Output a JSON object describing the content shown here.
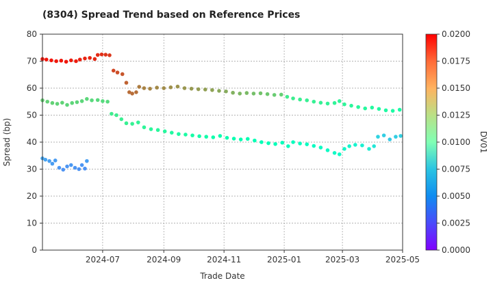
{
  "chart_data": {
    "type": "scatter",
    "title": "(8304)   Spread Trend based on Reference Prices",
    "xlabel": "Trade Date",
    "ylabel": "Spread (bp)",
    "ylim": [
      0,
      80
    ],
    "xlim": [
      "2024-05-01",
      "2025-05-01"
    ],
    "grid": true,
    "x_ticks": [
      "2024-07",
      "2024-09",
      "2024-11",
      "2025-01",
      "2025-03",
      "2025-05"
    ],
    "y_ticks": [
      0,
      10,
      20,
      30,
      40,
      50,
      60,
      70,
      80
    ],
    "colorbar": {
      "label": "DV01",
      "range": [
        0.0,
        0.02
      ],
      "ticks": [
        "0.0000",
        "0.0025",
        "0.0050",
        "0.0075",
        "0.0100",
        "0.0125",
        "0.0150",
        "0.0175",
        "0.0200"
      ],
      "colormap": "rainbow"
    },
    "series": [
      {
        "points": [
          {
            "x": "2024-05-01",
            "y": 70.8,
            "dv01": 0.0195
          },
          {
            "x": "2024-05-05",
            "y": 70.6,
            "dv01": 0.0195
          },
          {
            "x": "2024-05-10",
            "y": 70.3,
            "dv01": 0.0195
          },
          {
            "x": "2024-05-15",
            "y": 70.0,
            "dv01": 0.0194
          },
          {
            "x": "2024-05-20",
            "y": 70.2,
            "dv01": 0.0194
          },
          {
            "x": "2024-05-25",
            "y": 69.8,
            "dv01": 0.0194
          },
          {
            "x": "2024-05-30",
            "y": 70.3,
            "dv01": 0.0193
          },
          {
            "x": "2024-06-04",
            "y": 70.0,
            "dv01": 0.0193
          },
          {
            "x": "2024-06-08",
            "y": 70.6,
            "dv01": 0.0192
          },
          {
            "x": "2024-06-13",
            "y": 71.0,
            "dv01": 0.0191
          },
          {
            "x": "2024-06-18",
            "y": 71.2,
            "dv01": 0.0191
          },
          {
            "x": "2024-06-23",
            "y": 70.8,
            "dv01": 0.019
          },
          {
            "x": "2024-06-26",
            "y": 72.3,
            "dv01": 0.0189
          },
          {
            "x": "2024-06-30",
            "y": 72.5,
            "dv01": 0.0188
          },
          {
            "x": "2024-07-04",
            "y": 72.4,
            "dv01": 0.0187
          },
          {
            "x": "2024-07-08",
            "y": 72.2,
            "dv01": 0.0186
          },
          {
            "x": "2024-07-12",
            "y": 66.5,
            "dv01": 0.0182
          },
          {
            "x": "2024-07-16",
            "y": 65.8,
            "dv01": 0.018
          },
          {
            "x": "2024-07-21",
            "y": 65.2,
            "dv01": 0.0178
          },
          {
            "x": "2024-07-25",
            "y": 62.0,
            "dv01": 0.0175
          },
          {
            "x": "2024-07-28",
            "y": 58.5,
            "dv01": 0.0172
          },
          {
            "x": "2024-07-31",
            "y": 58.0,
            "dv01": 0.0172
          },
          {
            "x": "2024-08-04",
            "y": 58.5,
            "dv01": 0.0171
          },
          {
            "x": "2024-08-07",
            "y": 60.5,
            "dv01": 0.0168
          },
          {
            "x": "2024-08-12",
            "y": 60.0,
            "dv01": 0.0166
          },
          {
            "x": "2024-08-18",
            "y": 59.8,
            "dv01": 0.0165
          },
          {
            "x": "2024-08-25",
            "y": 60.2,
            "dv01": 0.0164
          },
          {
            "x": "2024-09-01",
            "y": 60.0,
            "dv01": 0.0163
          },
          {
            "x": "2024-09-08",
            "y": 60.3,
            "dv01": 0.0162
          },
          {
            "x": "2024-09-15",
            "y": 60.6,
            "dv01": 0.0161
          },
          {
            "x": "2024-09-22",
            "y": 60.0,
            "dv01": 0.016
          },
          {
            "x": "2024-09-29",
            "y": 59.8,
            "dv01": 0.0159
          },
          {
            "x": "2024-10-06",
            "y": 59.6,
            "dv01": 0.0158
          },
          {
            "x": "2024-10-13",
            "y": 59.5,
            "dv01": 0.0157
          },
          {
            "x": "2024-10-20",
            "y": 59.3,
            "dv01": 0.0156
          },
          {
            "x": "2024-10-27",
            "y": 59.0,
            "dv01": 0.0154
          },
          {
            "x": "2024-11-03",
            "y": 58.8,
            "dv01": 0.0153
          },
          {
            "x": "2024-11-10",
            "y": 58.3,
            "dv01": 0.0151
          },
          {
            "x": "2024-11-17",
            "y": 58.0,
            "dv01": 0.0149
          },
          {
            "x": "2024-11-24",
            "y": 58.2,
            "dv01": 0.0148
          },
          {
            "x": "2024-12-01",
            "y": 58.0,
            "dv01": 0.0146
          },
          {
            "x": "2024-12-08",
            "y": 58.1,
            "dv01": 0.0145
          },
          {
            "x": "2024-12-15",
            "y": 57.8,
            "dv01": 0.0143
          },
          {
            "x": "2024-12-22",
            "y": 57.5,
            "dv01": 0.0141
          },
          {
            "x": "2024-12-29",
            "y": 57.6,
            "dv01": 0.014
          }
        ]
      },
      {
        "points": [
          {
            "x": "2024-05-01",
            "y": 55.5,
            "dv01": 0.014
          },
          {
            "x": "2024-05-06",
            "y": 55.0,
            "dv01": 0.0139
          },
          {
            "x": "2024-05-11",
            "y": 54.5,
            "dv01": 0.0139
          },
          {
            "x": "2024-05-16",
            "y": 54.2,
            "dv01": 0.0138
          },
          {
            "x": "2024-05-21",
            "y": 54.6,
            "dv01": 0.0138
          },
          {
            "x": "2024-05-26",
            "y": 53.8,
            "dv01": 0.0137
          },
          {
            "x": "2024-05-31",
            "y": 54.5,
            "dv01": 0.0137
          },
          {
            "x": "2024-06-05",
            "y": 54.8,
            "dv01": 0.0137
          },
          {
            "x": "2024-06-10",
            "y": 55.2,
            "dv01": 0.0136
          },
          {
            "x": "2024-06-15",
            "y": 56.0,
            "dv01": 0.0136
          },
          {
            "x": "2024-06-20",
            "y": 55.5,
            "dv01": 0.0135
          },
          {
            "x": "2024-06-26",
            "y": 55.6,
            "dv01": 0.0135
          },
          {
            "x": "2024-07-01",
            "y": 55.2,
            "dv01": 0.0134
          },
          {
            "x": "2024-07-06",
            "y": 55.0,
            "dv01": 0.0134
          },
          {
            "x": "2025-01-04",
            "y": 56.8,
            "dv01": 0.0125
          },
          {
            "x": "2025-01-10",
            "y": 56.2,
            "dv01": 0.0124
          },
          {
            "x": "2025-01-17",
            "y": 55.8,
            "dv01": 0.0123
          },
          {
            "x": "2025-01-24",
            "y": 55.5,
            "dv01": 0.0122
          },
          {
            "x": "2025-01-31",
            "y": 55.0,
            "dv01": 0.0121
          },
          {
            "x": "2025-02-07",
            "y": 54.6,
            "dv01": 0.0121
          },
          {
            "x": "2025-02-14",
            "y": 54.3,
            "dv01": 0.012
          },
          {
            "x": "2025-02-21",
            "y": 54.5,
            "dv01": 0.0119
          },
          {
            "x": "2025-02-26",
            "y": 55.2,
            "dv01": 0.0119
          },
          {
            "x": "2025-03-03",
            "y": 54.0,
            "dv01": 0.0118
          },
          {
            "x": "2025-03-10",
            "y": 53.5,
            "dv01": 0.0117
          },
          {
            "x": "2025-03-17",
            "y": 53.0,
            "dv01": 0.0116
          },
          {
            "x": "2025-03-24",
            "y": 52.5,
            "dv01": 0.0115
          },
          {
            "x": "2025-03-31",
            "y": 52.8,
            "dv01": 0.0114
          },
          {
            "x": "2025-04-07",
            "y": 52.3,
            "dv01": 0.0113
          },
          {
            "x": "2025-04-14",
            "y": 51.8,
            "dv01": 0.0112
          },
          {
            "x": "2025-04-21",
            "y": 51.6,
            "dv01": 0.0111
          },
          {
            "x": "2025-04-28",
            "y": 52.0,
            "dv01": 0.011
          }
        ]
      },
      {
        "points": [
          {
            "x": "2024-07-10",
            "y": 50.5,
            "dv01": 0.0125
          },
          {
            "x": "2024-07-15",
            "y": 50.0,
            "dv01": 0.0124
          },
          {
            "x": "2024-07-20",
            "y": 48.5,
            "dv01": 0.0123
          },
          {
            "x": "2024-07-25",
            "y": 47.0,
            "dv01": 0.0122
          },
          {
            "x": "2024-07-31",
            "y": 46.8,
            "dv01": 0.0121
          },
          {
            "x": "2024-08-06",
            "y": 47.3,
            "dv01": 0.012
          },
          {
            "x": "2024-08-12",
            "y": 45.5,
            "dv01": 0.0118
          },
          {
            "x": "2024-08-19",
            "y": 44.8,
            "dv01": 0.0117
          },
          {
            "x": "2024-08-26",
            "y": 44.5,
            "dv01": 0.0116
          },
          {
            "x": "2024-09-02",
            "y": 44.0,
            "dv01": 0.0115
          },
          {
            "x": "2024-09-09",
            "y": 43.5,
            "dv01": 0.0113
          },
          {
            "x": "2024-09-16",
            "y": 43.0,
            "dv01": 0.0112
          },
          {
            "x": "2024-09-23",
            "y": 42.8,
            "dv01": 0.0111
          },
          {
            "x": "2024-09-30",
            "y": 42.5,
            "dv01": 0.0109
          },
          {
            "x": "2024-10-07",
            "y": 42.2,
            "dv01": 0.0108
          },
          {
            "x": "2024-10-14",
            "y": 42.0,
            "dv01": 0.0107
          },
          {
            "x": "2024-10-21",
            "y": 41.8,
            "dv01": 0.0106
          },
          {
            "x": "2024-10-28",
            "y": 42.3,
            "dv01": 0.0105
          },
          {
            "x": "2024-11-04",
            "y": 41.6,
            "dv01": 0.0104
          },
          {
            "x": "2024-11-11",
            "y": 41.3,
            "dv01": 0.0103
          },
          {
            "x": "2024-11-18",
            "y": 41.0,
            "dv01": 0.0102
          },
          {
            "x": "2024-11-25",
            "y": 41.2,
            "dv01": 0.0101
          },
          {
            "x": "2024-12-02",
            "y": 40.6,
            "dv01": 0.01
          },
          {
            "x": "2024-12-09",
            "y": 40.0,
            "dv01": 0.0099
          },
          {
            "x": "2024-12-16",
            "y": 39.6,
            "dv01": 0.0098
          },
          {
            "x": "2024-12-23",
            "y": 39.3,
            "dv01": 0.0097
          },
          {
            "x": "2024-12-30",
            "y": 39.8,
            "dv01": 0.0096
          },
          {
            "x": "2025-01-05",
            "y": 38.5,
            "dv01": 0.0094
          },
          {
            "x": "2025-01-10",
            "y": 40.0,
            "dv01": 0.0093
          },
          {
            "x": "2025-01-17",
            "y": 39.5,
            "dv01": 0.0092
          },
          {
            "x": "2025-01-24",
            "y": 39.2,
            "dv01": 0.0091
          },
          {
            "x": "2025-01-31",
            "y": 38.6,
            "dv01": 0.009
          },
          {
            "x": "2025-02-07",
            "y": 38.0,
            "dv01": 0.0089
          },
          {
            "x": "2025-02-14",
            "y": 37.0,
            "dv01": 0.0088
          },
          {
            "x": "2025-02-21",
            "y": 36.0,
            "dv01": 0.0087
          },
          {
            "x": "2025-02-26",
            "y": 35.5,
            "dv01": 0.0086
          },
          {
            "x": "2025-03-03",
            "y": 37.5,
            "dv01": 0.0084
          },
          {
            "x": "2025-03-08",
            "y": 38.5,
            "dv01": 0.0082
          },
          {
            "x": "2025-03-14",
            "y": 39.0,
            "dv01": 0.008
          },
          {
            "x": "2025-03-21",
            "y": 38.8,
            "dv01": 0.0078
          },
          {
            "x": "2025-03-28",
            "y": 37.5,
            "dv01": 0.0076
          },
          {
            "x": "2025-04-02",
            "y": 38.5,
            "dv01": 0.0072
          },
          {
            "x": "2025-04-06",
            "y": 42.0,
            "dv01": 0.0062
          },
          {
            "x": "2025-04-12",
            "y": 42.5,
            "dv01": 0.006
          },
          {
            "x": "2025-04-18",
            "y": 41.0,
            "dv01": 0.0058
          },
          {
            "x": "2025-04-24",
            "y": 42.0,
            "dv01": 0.006
          },
          {
            "x": "2025-04-29",
            "y": 42.3,
            "dv01": 0.0061
          }
        ]
      },
      {
        "points": [
          {
            "x": "2024-05-01",
            "y": 34.0,
            "dv01": 0.0045
          },
          {
            "x": "2024-05-04",
            "y": 33.5,
            "dv01": 0.0044
          },
          {
            "x": "2024-05-08",
            "y": 33.0,
            "dv01": 0.0043
          },
          {
            "x": "2024-05-11",
            "y": 32.0,
            "dv01": 0.0042
          },
          {
            "x": "2024-05-14",
            "y": 33.2,
            "dv01": 0.0042
          },
          {
            "x": "2024-05-18",
            "y": 30.5,
            "dv01": 0.004
          },
          {
            "x": "2024-05-22",
            "y": 29.8,
            "dv01": 0.0039
          },
          {
            "x": "2024-05-26",
            "y": 31.0,
            "dv01": 0.004
          },
          {
            "x": "2024-05-30",
            "y": 31.5,
            "dv01": 0.0041
          },
          {
            "x": "2024-06-03",
            "y": 30.5,
            "dv01": 0.004
          },
          {
            "x": "2024-06-07",
            "y": 30.0,
            "dv01": 0.0039
          },
          {
            "x": "2024-06-10",
            "y": 31.5,
            "dv01": 0.004
          },
          {
            "x": "2024-06-13",
            "y": 30.2,
            "dv01": 0.0039
          },
          {
            "x": "2024-06-15",
            "y": 33.0,
            "dv01": 0.0043
          }
        ]
      }
    ]
  }
}
